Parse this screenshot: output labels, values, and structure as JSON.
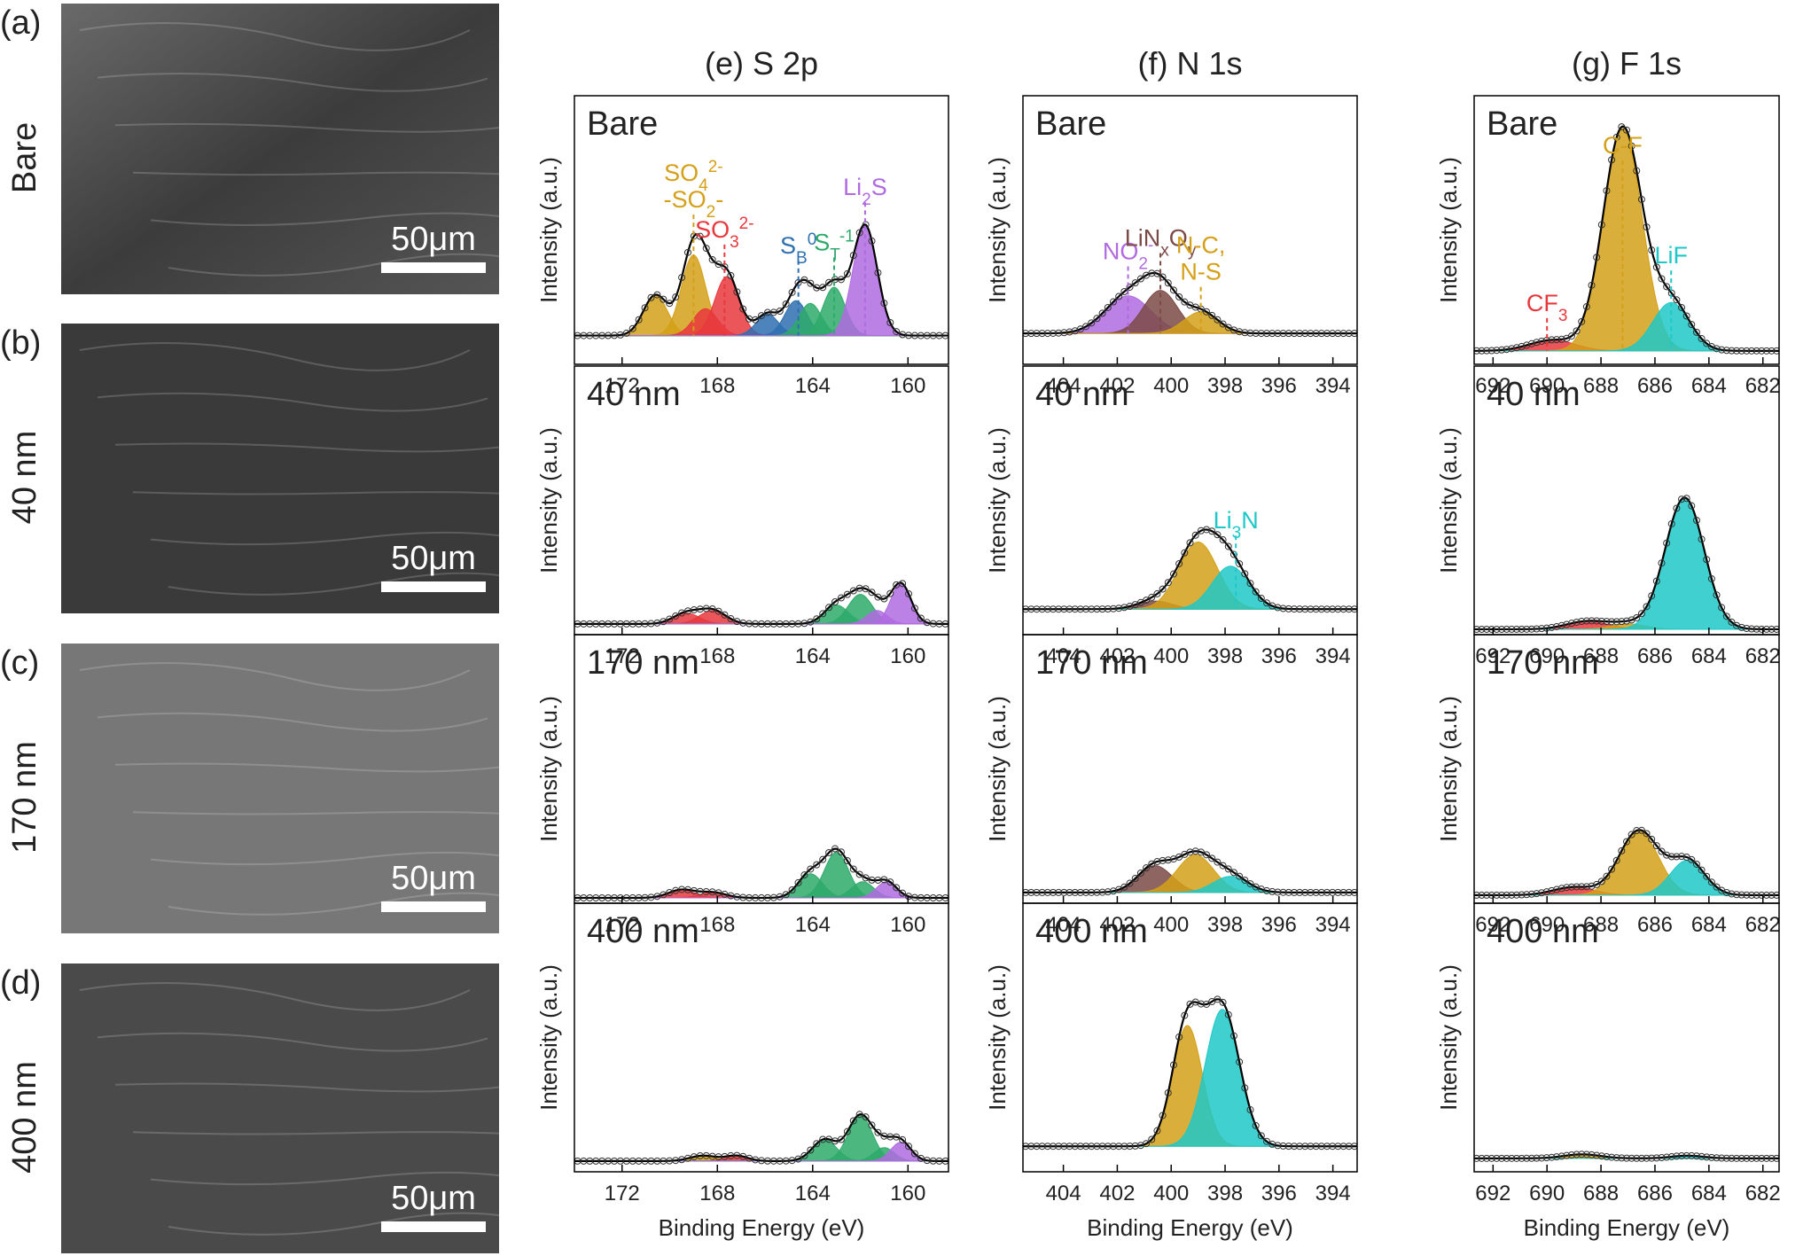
{
  "sem": {
    "panel_labels": [
      "(a)",
      "(b)",
      "(c)",
      "(d)"
    ],
    "row_labels": [
      "Bare",
      "40 nm",
      "170 nm",
      "400 nm"
    ],
    "scale_bar": "50μm"
  },
  "column_titles": [
    "(e) S 2p",
    "(f) N 1s",
    "(g) F 1s"
  ],
  "chart_data": [
    {
      "type": "xps",
      "label": "Bare",
      "ylabel": "Intensity (a.u.)",
      "xlim": [
        174,
        158.3
      ],
      "xticks": [
        172,
        168,
        164,
        160
      ],
      "ylim": [
        0,
        100
      ],
      "background": 10.7,
      "peaks": [
        {
          "color": "#d4a017",
          "center": 170.6,
          "height": 15,
          "fwhm": 1.2
        },
        {
          "color": "#d4a017",
          "center": 169.0,
          "height": 30,
          "fwhm": 1.2
        },
        {
          "color": "#e8383d",
          "center": 168.5,
          "height": 10,
          "fwhm": 1.2
        },
        {
          "color": "#e8383d",
          "center": 167.6,
          "height": 22,
          "fwhm": 1.2
        },
        {
          "color": "#2e6fb0",
          "center": 165.9,
          "height": 8,
          "fwhm": 1.1
        },
        {
          "color": "#2e6fb0",
          "center": 164.7,
          "height": 13,
          "fwhm": 1.1
        },
        {
          "color": "#2eaa6a",
          "center": 164.1,
          "height": 12,
          "fwhm": 1.1
        },
        {
          "color": "#2eaa6a",
          "center": 163.1,
          "height": 18,
          "fwhm": 1.1
        },
        {
          "color": "#b06be0",
          "center": 161.8,
          "height": 41,
          "fwhm": 1.2
        }
      ],
      "markers": [
        {
          "x": 169.0,
          "color": "#d4a017",
          "label": [
            [
              {
                "text": "SO"
              },
              {
                "sub": "4"
              },
              {
                "sup": "2-"
              }
            ],
            [
              {
                "text": "-SO"
              },
              {
                "sub": "2"
              },
              {
                "text": "-"
              }
            ]
          ]
        },
        {
          "x": 167.7,
          "color": "#e8383d",
          "label": [
            [
              {
                "text": "SO"
              },
              {
                "sub": "3"
              },
              {
                "sup": "2-"
              }
            ]
          ]
        },
        {
          "x": 164.6,
          "color": "#2e6fb0",
          "label": [
            [
              {
                "text": "S"
              },
              {
                "sub": "B"
              },
              {
                "sup": "0"
              }
            ]
          ]
        },
        {
          "x": 163.1,
          "color": "#2eaa6a",
          "label": [
            [
              {
                "text": "S"
              },
              {
                "sub": "T"
              },
              {
                "sup": "-1"
              }
            ]
          ]
        },
        {
          "x": 161.8,
          "color": "#b06be0",
          "label": [
            [
              {
                "text": "Li"
              },
              {
                "sub": "2"
              },
              {
                "text": "S"
              }
            ]
          ]
        }
      ]
    },
    {
      "type": "xps",
      "label": "40 nm",
      "ylabel": "Intensity (a.u.)",
      "xlim": [
        174,
        158.3
      ],
      "xticks": [
        172,
        168,
        164,
        160
      ],
      "ylim": [
        0,
        100
      ],
      "background": 4,
      "peaks": [
        {
          "color": "#e8383d",
          "center": 169.3,
          "height": 4,
          "fwhm": 1.3
        },
        {
          "color": "#e8383d",
          "center": 168.2,
          "height": 5,
          "fwhm": 1.3
        },
        {
          "color": "#2eaa6a",
          "center": 163.0,
          "height": 7,
          "fwhm": 1.2
        },
        {
          "color": "#2eaa6a",
          "center": 162.0,
          "height": 11,
          "fwhm": 1.2
        },
        {
          "color": "#b06be0",
          "center": 161.3,
          "height": 5,
          "fwhm": 1.0
        },
        {
          "color": "#b06be0",
          "center": 160.3,
          "height": 15,
          "fwhm": 1.0
        }
      ],
      "markers": []
    },
    {
      "type": "xps",
      "label": "170 nm",
      "ylabel": "Intensity (a.u.)",
      "xlim": [
        174,
        158.3
      ],
      "xticks": [
        172,
        168,
        164,
        160
      ],
      "ylim": [
        0,
        100
      ],
      "background": 2,
      "peaks": [
        {
          "color": "#e8383d",
          "center": 169.5,
          "height": 3,
          "fwhm": 1.3
        },
        {
          "color": "#e8383d",
          "center": 168.2,
          "height": 2,
          "fwhm": 1.3
        },
        {
          "color": "#2eaa6a",
          "center": 164.1,
          "height": 9,
          "fwhm": 1.2
        },
        {
          "color": "#2eaa6a",
          "center": 163.0,
          "height": 17,
          "fwhm": 1.2
        },
        {
          "color": "#2eaa6a",
          "center": 161.9,
          "height": 6,
          "fwhm": 1.1
        },
        {
          "color": "#b06be0",
          "center": 160.9,
          "height": 6,
          "fwhm": 1.0
        }
      ],
      "markers": []
    },
    {
      "type": "xps",
      "label": "400 nm",
      "ylabel": "Intensity (a.u.)",
      "xlabel": "Binding Energy (eV)",
      "xlim": [
        174,
        158.3
      ],
      "xticks": [
        172,
        168,
        164,
        160
      ],
      "ylim": [
        0,
        100
      ],
      "background": 4,
      "peaks": [
        {
          "color": "#d4a017",
          "center": 168.6,
          "height": 2,
          "fwhm": 1.3
        },
        {
          "color": "#e8383d",
          "center": 167.2,
          "height": 2,
          "fwhm": 1.1
        },
        {
          "color": "#2eaa6a",
          "center": 163.5,
          "height": 8,
          "fwhm": 1.2
        },
        {
          "color": "#2eaa6a",
          "center": 162.0,
          "height": 17,
          "fwhm": 1.2
        },
        {
          "color": "#2eaa6a",
          "center": 161.0,
          "height": 5,
          "fwhm": 1.0
        },
        {
          "color": "#b06be0",
          "center": 160.3,
          "height": 7,
          "fwhm": 1.0
        }
      ],
      "markers": []
    },
    {
      "type": "xps",
      "label": "Bare",
      "ylabel": "Intensity (a.u.)",
      "xlim": [
        405.5,
        393.1
      ],
      "xticks": [
        404,
        402,
        400,
        398,
        396,
        394
      ],
      "ylim": [
        0,
        100
      ],
      "background": 11.5,
      "peaks": [
        {
          "color": "#b06be0",
          "center": 401.6,
          "height": 14,
          "fwhm": 2.0
        },
        {
          "color": "#7b4a47",
          "center": 400.4,
          "height": 16,
          "fwhm": 1.5
        },
        {
          "color": "#d4a017",
          "center": 398.9,
          "height": 8,
          "fwhm": 1.5
        }
      ],
      "markers": [
        {
          "x": 401.6,
          "color": "#b06be0",
          "label": [
            [
              {
                "text": "NO"
              },
              {
                "sub": "2"
              },
              {
                "sup": "-"
              }
            ]
          ]
        },
        {
          "x": 400.4,
          "color": "#7b4a47",
          "label": [
            [
              {
                "text": "LiN"
              },
              {
                "sub": "x"
              },
              {
                "text": "O"
              },
              {
                "sub": "y"
              }
            ]
          ]
        },
        {
          "x": 398.9,
          "color": "#d4a017",
          "label": [
            [
              {
                "text": "N-C,"
              }
            ],
            [
              {
                "text": "N-S"
              }
            ]
          ]
        }
      ]
    },
    {
      "type": "xps",
      "label": "40 nm",
      "ylabel": "Intensity (a.u.)",
      "xlim": [
        405.5,
        393.1
      ],
      "xticks": [
        404,
        402,
        400,
        398,
        396,
        394
      ],
      "ylim": [
        0,
        100
      ],
      "background": 9.5,
      "peaks": [
        {
          "color": "#7b4a47",
          "center": 400.6,
          "height": 3,
          "fwhm": 1.5
        },
        {
          "color": "#d4a017",
          "center": 399.0,
          "height": 25,
          "fwhm": 1.7
        },
        {
          "color": "#1ec8c8",
          "center": 397.8,
          "height": 16,
          "fwhm": 1.6
        }
      ],
      "markers": [
        {
          "x": 397.6,
          "color": "#1ec8c8",
          "label": [
            [
              {
                "text": "Li"
              },
              {
                "sub": "3"
              },
              {
                "text": "N"
              }
            ]
          ]
        }
      ]
    },
    {
      "type": "xps",
      "label": "170 nm",
      "ylabel": "Intensity (a.u.)",
      "xlim": [
        405.5,
        393.1
      ],
      "xticks": [
        404,
        402,
        400,
        398,
        396,
        394
      ],
      "ylim": [
        0,
        100
      ],
      "background": 4,
      "peaks": [
        {
          "color": "#7b4a47",
          "center": 400.6,
          "height": 10,
          "fwhm": 1.5
        },
        {
          "color": "#d4a017",
          "center": 399.1,
          "height": 14,
          "fwhm": 1.6
        },
        {
          "color": "#1ec8c8",
          "center": 397.8,
          "height": 6,
          "fwhm": 1.5
        }
      ],
      "markers": []
    },
    {
      "type": "xps",
      "label": "400 nm",
      "ylabel": "Intensity (a.u.)",
      "xlabel": "Binding Energy (eV)",
      "xlim": [
        405.5,
        393.1
      ],
      "xticks": [
        404,
        402,
        400,
        398,
        396,
        394
      ],
      "ylim": [
        0,
        100
      ],
      "background": 9.5,
      "peaks": [
        {
          "color": "#d4a017",
          "center": 399.4,
          "height": 45,
          "fwhm": 1.3
        },
        {
          "color": "#1ec8c8",
          "center": 398.1,
          "height": 51,
          "fwhm": 1.5
        }
      ],
      "markers": []
    },
    {
      "type": "xps",
      "label": "Bare",
      "ylabel": "Intensity (a.u.)",
      "xlim": [
        692.7,
        681.4
      ],
      "xticks": [
        692,
        690,
        688,
        686,
        684,
        682
      ],
      "ylim": [
        0,
        100
      ],
      "background": 5,
      "peaks": [
        {
          "color": "#e8383d",
          "center": 689.8,
          "height": 4,
          "fwhm": 2.0
        },
        {
          "color": "#d4a017",
          "center": 687.2,
          "height": 83,
          "fwhm": 1.7
        },
        {
          "color": "#1ec8c8",
          "center": 685.4,
          "height": 18,
          "fwhm": 1.6
        }
      ],
      "markers": [
        {
          "x": 690.0,
          "color": "#e8383d",
          "label": [
            [
              {
                "text": "CF"
              },
              {
                "sub": "3"
              }
            ]
          ]
        },
        {
          "x": 687.2,
          "color": "#d4a017",
          "label": [
            [
              {
                "text": "C-F"
              }
            ]
          ]
        },
        {
          "x": 685.4,
          "color": "#1ec8c8",
          "label": [
            [
              {
                "text": "LiF"
              }
            ]
          ]
        }
      ]
    },
    {
      "type": "xps",
      "label": "40 nm",
      "ylabel": "Intensity (a.u.)",
      "xlim": [
        692.7,
        681.4
      ],
      "xticks": [
        692,
        690,
        688,
        686,
        684,
        682
      ],
      "ylim": [
        0,
        100
      ],
      "background": 2,
      "peaks": [
        {
          "color": "#e8383d",
          "center": 688.5,
          "height": 3,
          "fwhm": 1.8
        },
        {
          "color": "#d4a017",
          "center": 687.0,
          "height": 2,
          "fwhm": 1.5
        },
        {
          "color": "#1ec8c8",
          "center": 684.9,
          "height": 49,
          "fwhm": 1.7
        }
      ],
      "markers": []
    },
    {
      "type": "xps",
      "label": "170 nm",
      "ylabel": "Intensity (a.u.)",
      "xlim": [
        692.7,
        681.4
      ],
      "xticks": [
        692,
        690,
        688,
        686,
        684,
        682
      ],
      "ylim": [
        0,
        100
      ],
      "background": 3,
      "peaks": [
        {
          "color": "#e8383d",
          "center": 689.0,
          "height": 3,
          "fwhm": 1.8
        },
        {
          "color": "#d4a017",
          "center": 686.6,
          "height": 24,
          "fwhm": 1.7
        },
        {
          "color": "#1ec8c8",
          "center": 684.8,
          "height": 13,
          "fwhm": 1.5
        }
      ],
      "markers": []
    },
    {
      "type": "xps",
      "label": "400 nm",
      "ylabel": "Intensity (a.u.)",
      "xlabel": "Binding Energy (eV)",
      "xlim": [
        692.7,
        681.4
      ],
      "xticks": [
        692,
        690,
        688,
        686,
        684,
        682
      ],
      "ylim": [
        0,
        100
      ],
      "background": 5,
      "peaks": [
        {
          "color": "#d4a017",
          "center": 688.7,
          "height": 1.5,
          "fwhm": 1.6
        },
        {
          "color": "#1ec8c8",
          "center": 684.8,
          "height": 1,
          "fwhm": 1.4
        }
      ],
      "markers": []
    }
  ]
}
